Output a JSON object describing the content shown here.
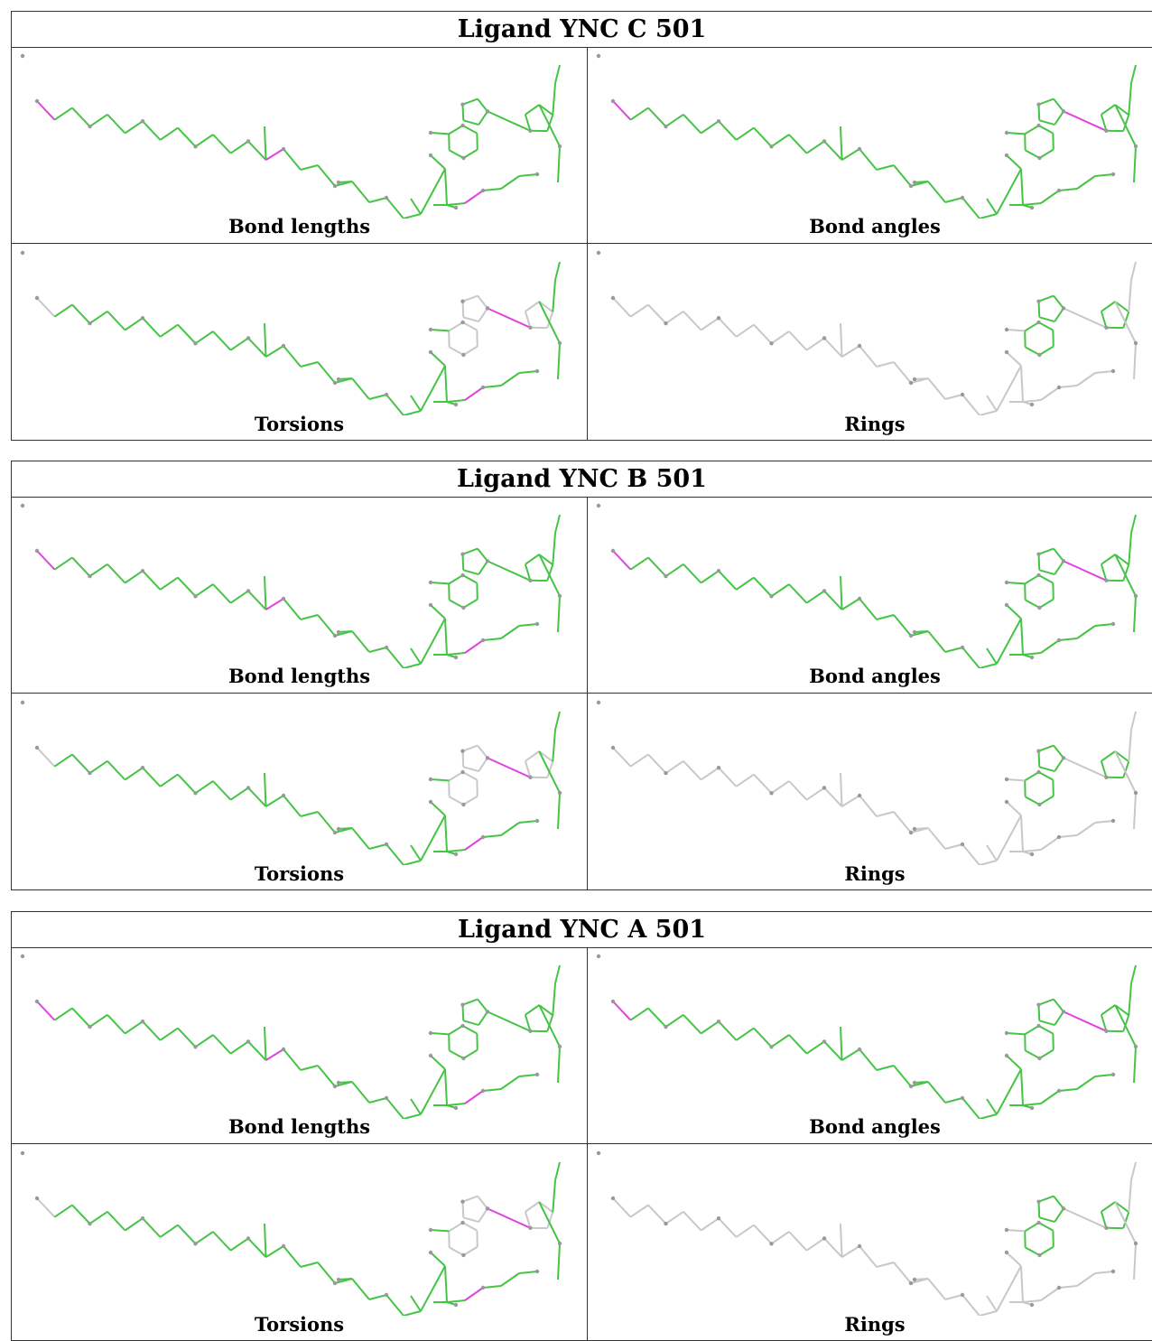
{
  "tables": [
    {
      "title": "Ligand YNC C 501",
      "panels": [
        "Bond lengths",
        "Bond angles",
        "Torsions",
        "Rings"
      ]
    },
    {
      "title": "Ligand YNC B 501",
      "panels": [
        "Bond lengths",
        "Bond angles",
        "Torsions",
        "Rings"
      ]
    },
    {
      "title": "Ligand YNC A 501",
      "panels": [
        "Bond lengths",
        "Bond angles",
        "Torsions",
        "Rings"
      ]
    }
  ]
}
